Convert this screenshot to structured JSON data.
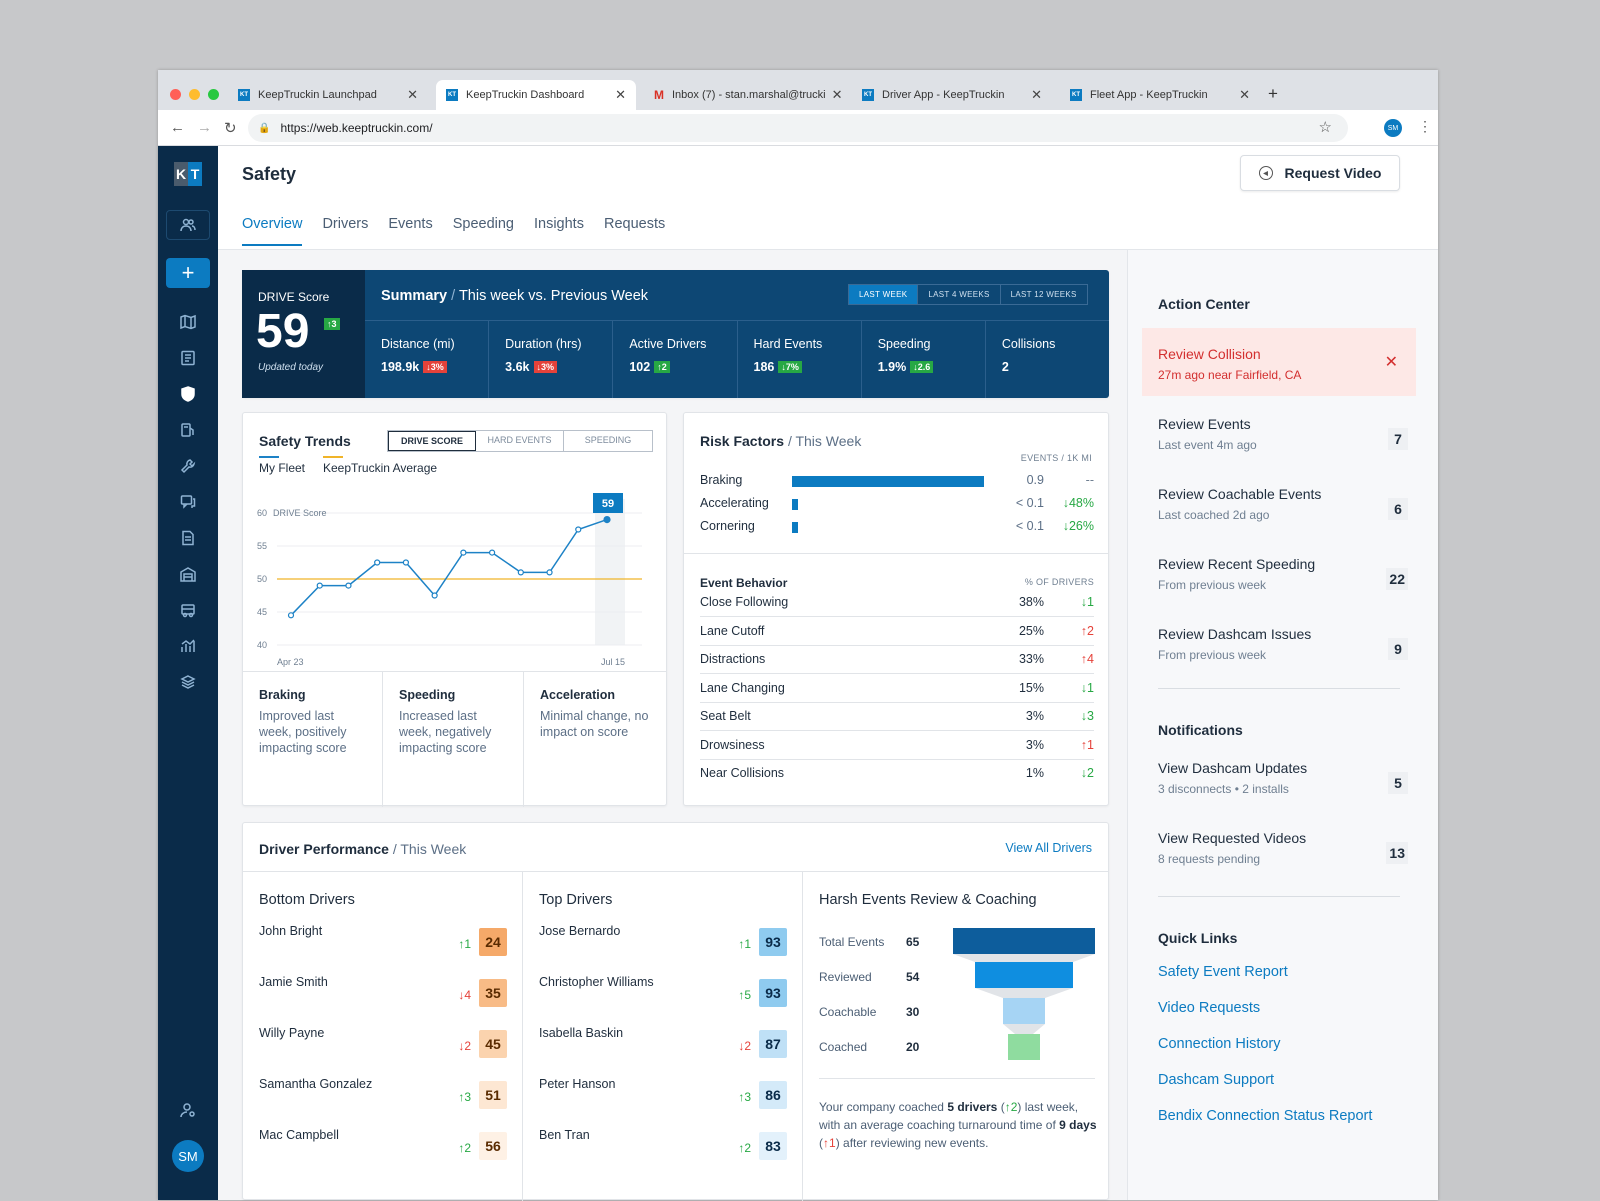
{
  "browser": {
    "tabs": [
      {
        "label": "KeepTruckin Launchpad"
      },
      {
        "label": "KeepTruckin Dashboard"
      },
      {
        "label": "Inbox (7) - stan.marshal@trucki"
      },
      {
        "label": "Driver App - KeepTruckin"
      },
      {
        "label": "Fleet App - KeepTruckin"
      }
    ],
    "url": "https://web.keeptruckin.com/",
    "profile": "SM"
  },
  "sidebar": {
    "logo_k": "K",
    "logo_t": "T",
    "avatar": "SM"
  },
  "page": {
    "title": "Safety",
    "request_video": "Request Video",
    "tabs": [
      "Overview",
      "Drivers",
      "Events",
      "Speeding",
      "Insights",
      "Requests"
    ]
  },
  "summary": {
    "drive_label": "DRIVE Score",
    "drive_score": "59",
    "drive_change": "↑3",
    "updated": "Updated today",
    "title": "Summary",
    "subtitle": "This week vs. Previous Week",
    "ranges": [
      "LAST WEEK",
      "LAST 4 WEEKS",
      "LAST 12 WEEKS"
    ],
    "metrics": [
      {
        "label": "Distance (mi)",
        "value": "198.9k",
        "change": "↓3%",
        "dir": "r"
      },
      {
        "label": "Duration (hrs)",
        "value": "3.6k",
        "change": "↓3%",
        "dir": "r"
      },
      {
        "label": "Active Drivers",
        "value": "102",
        "change": "↑2",
        "dir": "g"
      },
      {
        "label": "Hard Events",
        "value": "186",
        "change": "↓7%",
        "dir": "g"
      },
      {
        "label": "Speeding",
        "value": "1.9%",
        "change": "↓2.6",
        "dir": "g"
      },
      {
        "label": "Collisions",
        "value": "2",
        "change": "",
        "dir": ""
      }
    ]
  },
  "trends": {
    "title": "Safety Trends",
    "toggles": [
      "DRIVE SCORE",
      "HARD EVENTS",
      "SPEEDING"
    ],
    "legend": [
      "My Fleet",
      "KeepTruckin Average"
    ],
    "insights": [
      {
        "title": "Braking",
        "text": "Improved last week, positively impacting score"
      },
      {
        "title": "Speeding",
        "text": "Increased last week, negatively impacting score"
      },
      {
        "title": "Acceleration",
        "text": "Minimal change, no impact on score"
      }
    ]
  },
  "chart_data": {
    "type": "line",
    "title": "Safety Trends",
    "ylabel": "DRIVE Score",
    "ylim": [
      40,
      60
    ],
    "yticks": [
      "60",
      "55",
      "50",
      "45",
      "40"
    ],
    "x_labels": [
      "Apr 23",
      "Jul 15"
    ],
    "series": [
      {
        "name": "My Fleet",
        "values": [
          44.5,
          49,
          49,
          52.5,
          52.5,
          47.5,
          54,
          54,
          51,
          51,
          57.5,
          59
        ]
      },
      {
        "name": "KeepTruckin Average",
        "values": [
          50,
          50,
          50,
          50,
          50,
          50,
          50,
          50,
          50,
          50,
          50,
          50
        ]
      }
    ],
    "last_label": "59",
    "colors": {
      "fleet": "#1d82c6",
      "average": "#f0b429"
    }
  },
  "risk": {
    "title": "Risk Factors",
    "subtitle": "This Week",
    "unit": "EVENTS / 1K MI",
    "rows": [
      {
        "name": "Braking",
        "bar": 1.0,
        "value": "0.9",
        "change": "--",
        "dir": "n"
      },
      {
        "name": "Accelerating",
        "bar": 0.03,
        "value": "< 0.1",
        "change": "↓48%",
        "dir": "g"
      },
      {
        "name": "Cornering",
        "bar": 0.03,
        "value": "< 0.1",
        "change": "↓26%",
        "dir": "g"
      }
    ],
    "behavior_title": "Event Behavior",
    "behavior_unit": "% OF DRIVERS",
    "behavior": [
      {
        "name": "Close Following",
        "pct": "38%",
        "change": "↓1",
        "dir": "g"
      },
      {
        "name": "Lane Cutoff",
        "pct": "25%",
        "change": "↑2",
        "dir": "r"
      },
      {
        "name": "Distractions",
        "pct": "33%",
        "change": "↑4",
        "dir": "r"
      },
      {
        "name": "Lane Changing",
        "pct": "15%",
        "change": "↓1",
        "dir": "g"
      },
      {
        "name": "Seat Belt",
        "pct": "3%",
        "change": "↓3",
        "dir": "g"
      },
      {
        "name": "Drowsiness",
        "pct": "3%",
        "change": "↑1",
        "dir": "r"
      },
      {
        "name": "Near Collisions",
        "pct": "1%",
        "change": "↓2",
        "dir": "g"
      }
    ]
  },
  "performance": {
    "title": "Driver Performance",
    "subtitle": "This Week",
    "view_all": "View All Drivers",
    "bottom_title": "Bottom Drivers",
    "bottom": [
      {
        "name": "John Bright",
        "change": "↑1",
        "dir": "g",
        "score": "24"
      },
      {
        "name": "Jamie Smith",
        "change": "↓4",
        "dir": "r",
        "score": "35"
      },
      {
        "name": "Willy Payne",
        "change": "↓2",
        "dir": "r",
        "score": "45"
      },
      {
        "name": "Samantha Gonzalez",
        "change": "↑3",
        "dir": "g",
        "score": "51"
      },
      {
        "name": "Mac Campbell",
        "change": "↑2",
        "dir": "g",
        "score": "56"
      }
    ],
    "top_title": "Top Drivers",
    "top": [
      {
        "name": "Jose Bernardo",
        "change": "↑1",
        "dir": "g",
        "score": "93"
      },
      {
        "name": "Christopher Williams",
        "change": "↑5",
        "dir": "g",
        "score": "93"
      },
      {
        "name": "Isabella Baskin",
        "change": "↓2",
        "dir": "r",
        "score": "87"
      },
      {
        "name": "Peter Hanson",
        "change": "↑3",
        "dir": "g",
        "score": "86"
      },
      {
        "name": "Ben Tran",
        "change": "↑2",
        "dir": "g",
        "score": "83"
      }
    ],
    "harsh_title": "Harsh Events Review & Coaching",
    "funnel": [
      {
        "label": "Total Events",
        "value": "65"
      },
      {
        "label": "Reviewed",
        "value": "54"
      },
      {
        "label": "Coachable",
        "value": "30"
      },
      {
        "label": "Coached",
        "value": "20"
      }
    ],
    "note": {
      "a": "Your company coached ",
      "b": "5 drivers",
      "c": " (",
      "d": "↑2",
      "e": ") last week, with an average coaching turnaround time of ",
      "f": "9 days",
      "g": " (",
      "h": "↑1",
      "i": ") after reviewing new events."
    }
  },
  "action_center": {
    "title": "Action Center",
    "alert": {
      "title": "Review Collision",
      "sub": "27m ago near Fairfield, CA"
    },
    "items": [
      {
        "title": "Review Events",
        "sub": "Last event 4m ago",
        "count": "7"
      },
      {
        "title": "Review Coachable Events",
        "sub": "Last coached 2d ago",
        "count": "6"
      },
      {
        "title": "Review Recent Speeding",
        "sub": "From previous week",
        "count": "22"
      },
      {
        "title": "Review Dashcam Issues",
        "sub": "From previous week",
        "count": "9"
      }
    ]
  },
  "notifications": {
    "title": "Notifications",
    "items": [
      {
        "title": "View Dashcam Updates",
        "sub": "3 disconnects • 2 installs",
        "count": "5"
      },
      {
        "title": "View Requested Videos",
        "sub": "8 requests pending",
        "count": "13"
      }
    ]
  },
  "quick_links": {
    "title": "Quick Links",
    "links": [
      "Safety Event Report",
      "Video Requests",
      "Connection History",
      "Dashcam Support",
      "Bendix Connection Status Report"
    ]
  }
}
